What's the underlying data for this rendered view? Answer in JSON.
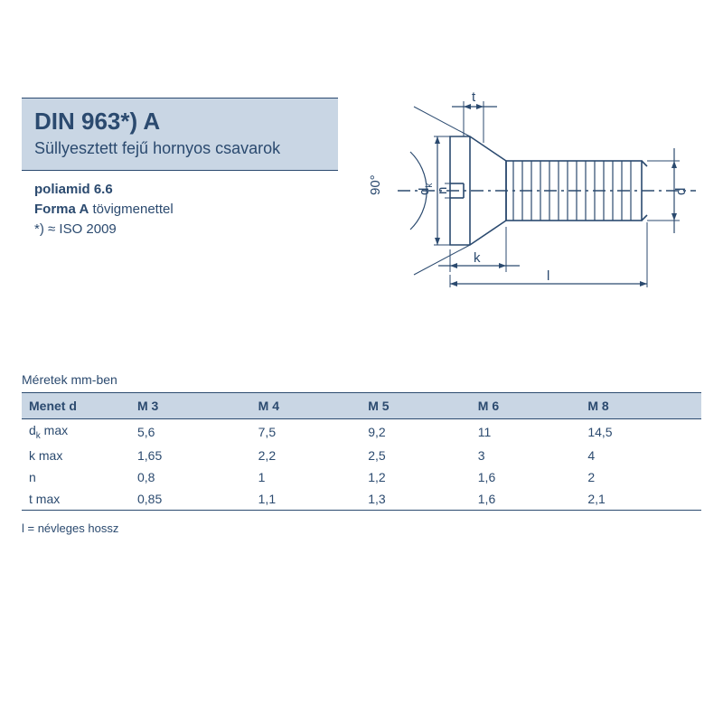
{
  "colors": {
    "ink": "#2b4a6f",
    "band": "#c9d6e4",
    "bg": "#ffffff",
    "hatch": "#2b4a6f"
  },
  "header": {
    "din": "DIN 963*) A",
    "subtitle": "Süllyesztett fejű hornyos csavarok",
    "material": "poliamid 6.6",
    "form_bold": "Forma A",
    "form_rest": " tövigmenettel",
    "iso": "*) ≈ ISO 2009"
  },
  "diagram": {
    "labels": {
      "t": "t",
      "dk": "d",
      "dk_sub": "k",
      "n": "n",
      "k": "k",
      "l": "l",
      "d": "d",
      "angle": "90°"
    }
  },
  "table": {
    "caption": "Méretek mm-ben",
    "columns": [
      "Menet d",
      "M 3",
      "M 4",
      "M 5",
      "M 6",
      "M 8"
    ],
    "rows": [
      {
        "label_html": "d<sub>k</sub> max",
        "cells": [
          "5,6",
          "7,5",
          "9,2",
          "11",
          "14,5"
        ]
      },
      {
        "label_html": "k max",
        "cells": [
          "1,65",
          "2,2",
          "2,5",
          "3",
          "4"
        ]
      },
      {
        "label_html": "n",
        "cells": [
          "0,8",
          "1",
          "1,2",
          "1,6",
          "2"
        ]
      },
      {
        "label_html": "t max",
        "cells": [
          "0,85",
          "1,1",
          "1,3",
          "1,6",
          "2,1"
        ]
      }
    ],
    "footnote": "l = névleges hossz",
    "col_widths_pct": [
      16,
      16.8,
      16.8,
      16.8,
      16.8,
      16.8
    ]
  }
}
